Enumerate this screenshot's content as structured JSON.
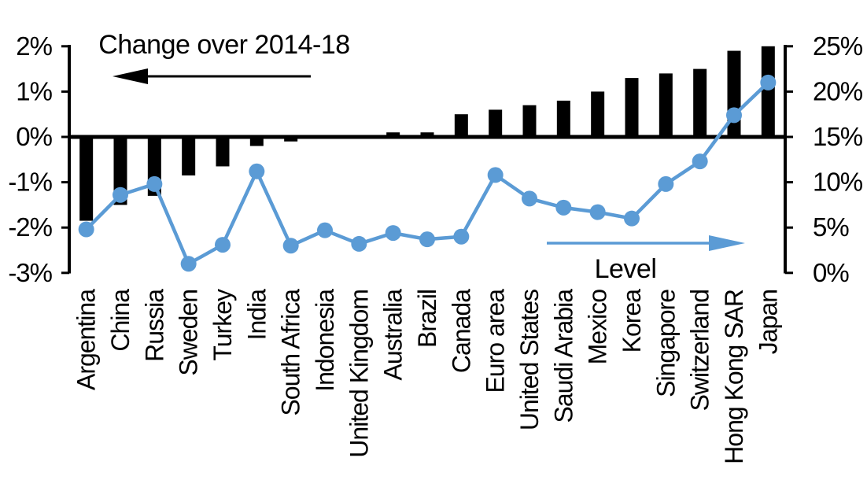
{
  "chart_data": {
    "type": "combo-bar-line",
    "title": "Change over 2014-18",
    "categories": [
      "Argentina",
      "China",
      "Russia",
      "Sweden",
      "Turkey",
      "India",
      "South Africa",
      "Indonesia",
      "United Kingdom",
      "Australia",
      "Brazil",
      "Canada",
      "Euro area",
      "United States",
      "Saudi Arabia",
      "Mexico",
      "Korea",
      "Singapore",
      "Switzerland",
      "Hong Kong SAR",
      "Japan"
    ],
    "series": [
      {
        "name": "Change over 2014-18",
        "type": "bar",
        "axis": "left",
        "color": "#000000",
        "values": [
          -1.85,
          -1.5,
          -1.3,
          -0.85,
          -0.65,
          -0.2,
          -0.1,
          0,
          0,
          0.1,
          0.1,
          0.5,
          0.6,
          0.7,
          0.8,
          1.0,
          1.3,
          1.4,
          1.5,
          1.9,
          2.0
        ]
      },
      {
        "name": "Level",
        "type": "line",
        "axis": "right",
        "color": "#5b9bd5",
        "values": [
          4.8,
          8.6,
          9.8,
          1.0,
          3.1,
          11.2,
          3.0,
          4.7,
          3.2,
          4.4,
          3.7,
          4.0,
          10.8,
          8.2,
          7.2,
          6.7,
          6.0,
          9.8,
          12.3,
          17.4,
          21.0
        ]
      }
    ],
    "left_axis": {
      "tick_labels": [
        "2%",
        "1%",
        "0%",
        "-1%",
        "-2%",
        "-3%"
      ],
      "tick_values": [
        2,
        1,
        0,
        -1,
        -2,
        -3
      ],
      "range": [
        -3,
        2
      ]
    },
    "right_axis": {
      "tick_labels": [
        "25%",
        "20%",
        "15%",
        "10%",
        "5%",
        "0%"
      ],
      "tick_values": [
        25,
        20,
        15,
        10,
        5,
        0
      ],
      "range": [
        0,
        25
      ]
    },
    "annotations": {
      "bar_series_label": "Change over 2014-18",
      "line_series_label": "Level",
      "bar_arrow_direction": "left",
      "line_arrow_direction": "right"
    },
    "grid": false,
    "legend_position": "in-plot-annotations",
    "colors": {
      "bar": "#000000",
      "line": "#5b9bd5",
      "background": "#ffffff"
    }
  }
}
